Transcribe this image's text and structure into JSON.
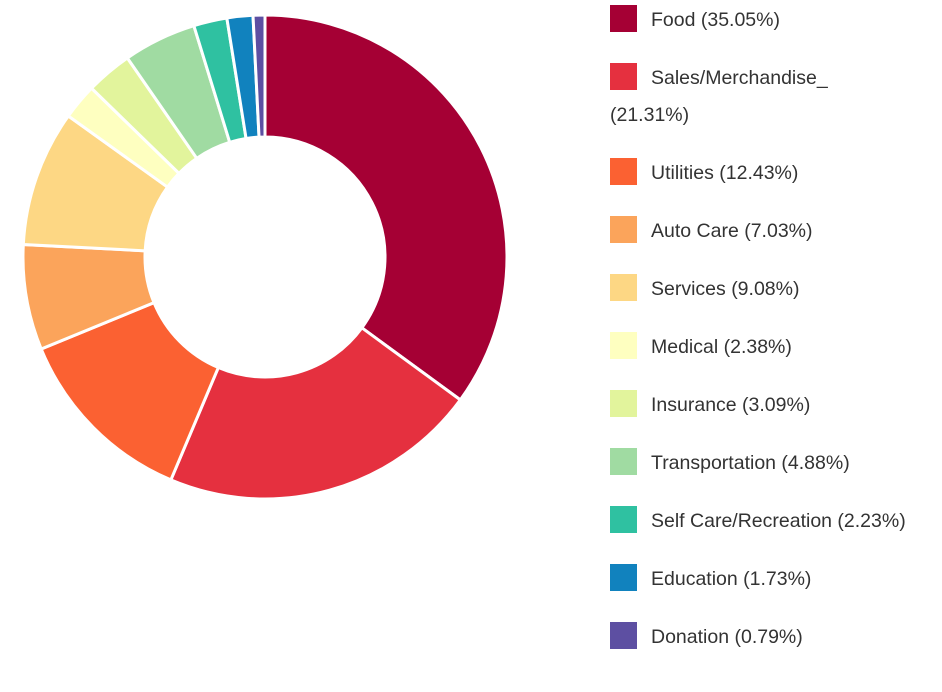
{
  "chart_data": {
    "type": "donut",
    "categories": [
      "Food (35.05%)",
      "Sales/Merchandise_ (21.31%)",
      "Utilities (12.43%)",
      "Auto Care (7.03%)",
      "Services (9.08%)",
      "Medical (2.38%)",
      "Insurance (3.09%)",
      "Transportation (4.88%)",
      "Self Care/Recreation (2.23%)",
      "Education (1.73%)",
      "Donation (0.79%)"
    ],
    "values": [
      35.05,
      21.31,
      12.43,
      7.03,
      9.08,
      2.38,
      3.09,
      4.88,
      2.23,
      1.73,
      0.79
    ],
    "colors": [
      "#a50034",
      "#e5303f",
      "#fb6132",
      "#fba45b",
      "#fdd784",
      "#feffc0",
      "#e2f49c",
      "#a0dba2",
      "#2fc1a1",
      "#1182be",
      "#5d4fa2"
    ],
    "legend": "right"
  }
}
